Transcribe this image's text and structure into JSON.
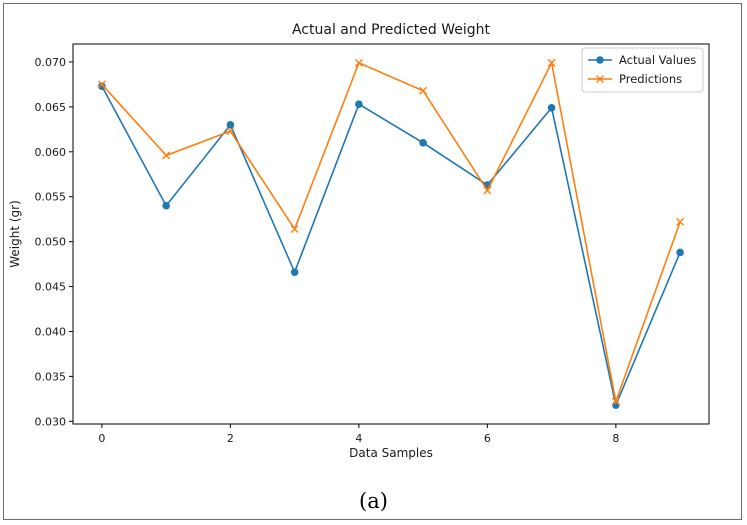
{
  "chart_data": {
    "type": "line",
    "title": "Actual and Predicted Weight",
    "xlabel": "Data Samples",
    "ylabel": "Weight (gr)",
    "x": [
      0,
      1,
      2,
      3,
      4,
      5,
      6,
      7,
      8,
      9
    ],
    "xlim": [
      -0.45,
      9.45
    ],
    "ylim": [
      0.0297,
      0.072
    ],
    "xticks": [
      0,
      2,
      4,
      6,
      8
    ],
    "yticks": [
      0.03,
      0.035,
      0.04,
      0.045,
      0.05,
      0.055,
      0.06,
      0.065,
      0.07
    ],
    "xtick_labels": [
      "0",
      "2",
      "4",
      "6",
      "8"
    ],
    "ytick_labels": [
      "0.030",
      "0.035",
      "0.040",
      "0.045",
      "0.050",
      "0.055",
      "0.060",
      "0.065",
      "0.070"
    ],
    "grid": false,
    "legend_position": "top-right",
    "series": [
      {
        "name": "Actual Values",
        "color": "#1f77b4",
        "marker": "circle",
        "values": [
          0.0673,
          0.054,
          0.063,
          0.0466,
          0.0653,
          0.061,
          0.0563,
          0.0649,
          0.0318,
          0.0488
        ]
      },
      {
        "name": "Predictions",
        "color": "#ff7f0e",
        "marker": "x",
        "values": [
          0.0675,
          0.0596,
          0.0623,
          0.0514,
          0.0699,
          0.0668,
          0.0557,
          0.0699,
          0.0322,
          0.0522
        ]
      }
    ]
  },
  "caption": "(a)"
}
